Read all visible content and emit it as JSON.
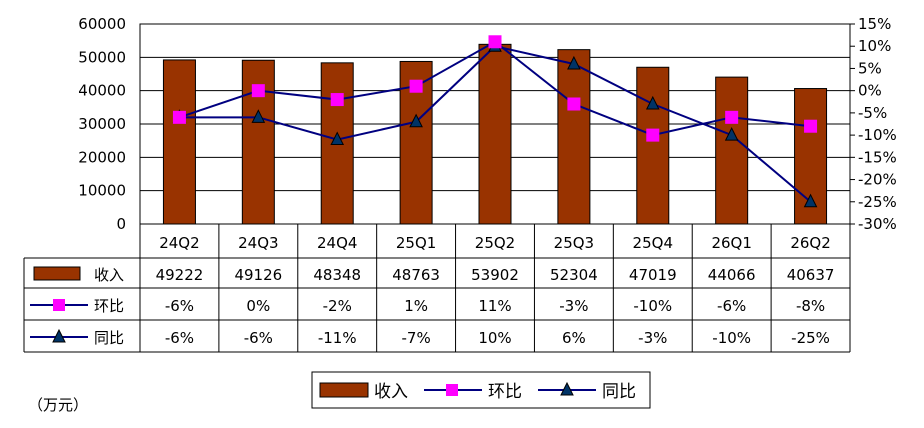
{
  "chart_data": {
    "type": "bar",
    "categories": [
      "24Q2",
      "24Q3",
      "24Q4",
      "25Q1",
      "25Q2",
      "25Q3",
      "25Q4",
      "26Q1",
      "26Q2"
    ],
    "series": [
      {
        "name": "收入",
        "type": "bar",
        "axis": "left",
        "color": "#993300",
        "values": [
          49222,
          49126,
          48348,
          48763,
          53902,
          52304,
          47019,
          44066,
          40637
        ],
        "labels": [
          "49222",
          "49126",
          "48348",
          "48763",
          "53902",
          "52304",
          "47019",
          "44066",
          "40637"
        ]
      },
      {
        "name": "环比",
        "type": "line",
        "axis": "right",
        "color": "#FF00FF",
        "marker": "square",
        "values": [
          -6,
          0,
          -2,
          1,
          11,
          -3,
          -10,
          -6,
          -8
        ],
        "labels": [
          "-6%",
          "0%",
          "-2%",
          "1%",
          "11%",
          "-3%",
          "-10%",
          "-6%",
          "-8%"
        ]
      },
      {
        "name": "同比",
        "type": "line",
        "axis": "right",
        "color": "#003366",
        "marker": "triangle",
        "values": [
          -6,
          -6,
          -11,
          -7,
          10,
          6,
          -3,
          -10,
          -25
        ],
        "labels": [
          "-6%",
          "-6%",
          "-11%",
          "-7%",
          "10%",
          "6%",
          "-3%",
          "-10%",
          "-25%"
        ]
      }
    ],
    "y_left": {
      "min": 0,
      "max": 60000,
      "step": 10000,
      "ticks": [
        "0",
        "10000",
        "20000",
        "30000",
        "40000",
        "50000",
        "60000"
      ]
    },
    "y_right": {
      "min": -30,
      "max": 15,
      "step": 5,
      "ticks": [
        "-30%",
        "-25%",
        "-20%",
        "-15%",
        "-10%",
        "-5%",
        "0%",
        "5%",
        "10%",
        "15%"
      ]
    },
    "grid": true,
    "legend_placement": "bottom",
    "unit_note": "（万元）",
    "line_color": "#000080"
  }
}
